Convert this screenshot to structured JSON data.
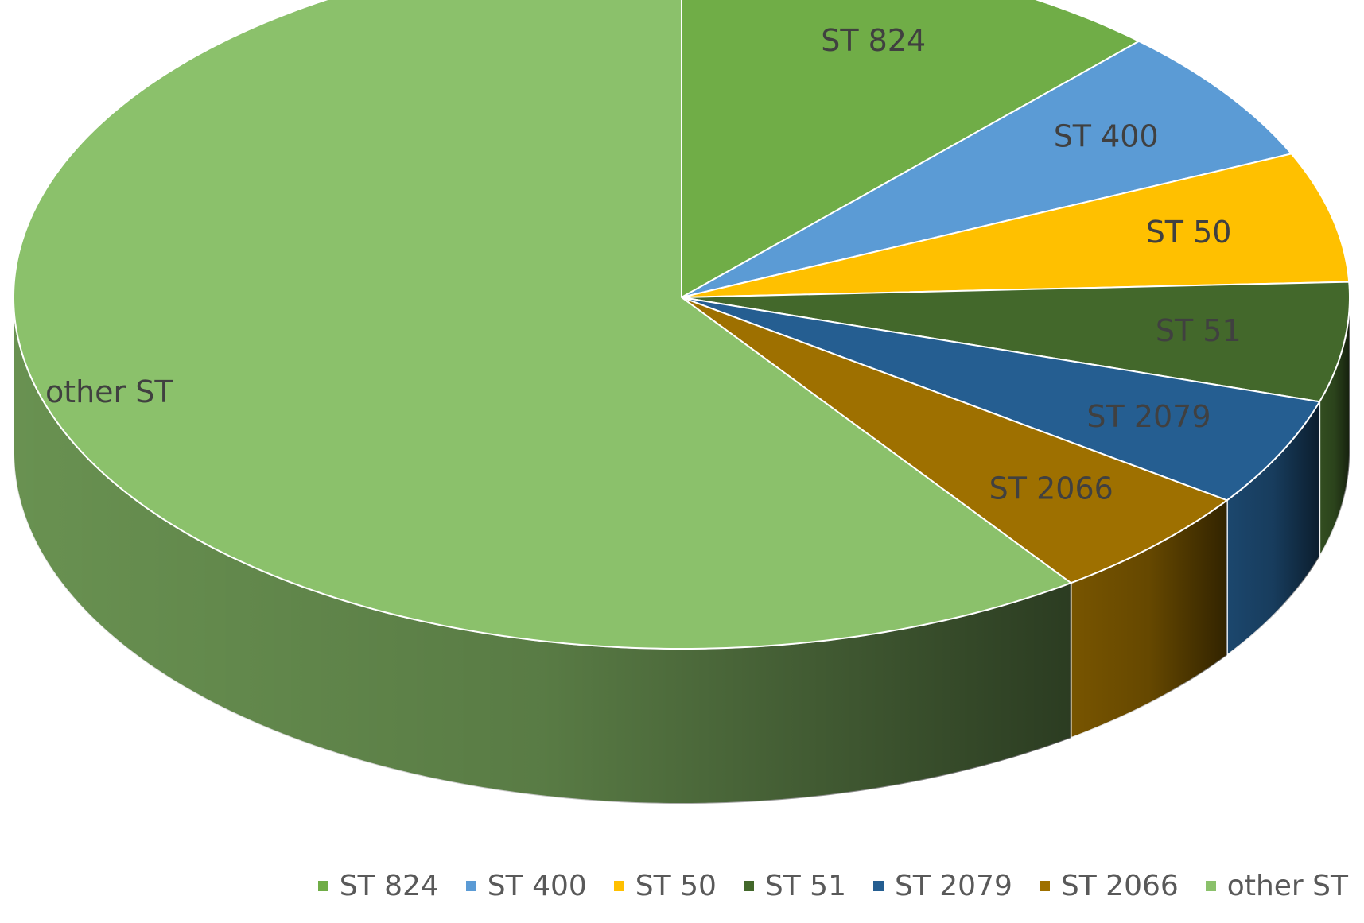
{
  "chart_data": {
    "type": "pie",
    "style": "3d",
    "title": "",
    "legend_position": "bottom",
    "slices": [
      {
        "label": "ST 824",
        "value": 12.0,
        "color": "#70AD47"
      },
      {
        "label": "ST 400",
        "value": 6.3,
        "color": "#5B9BD5"
      },
      {
        "label": "ST 50",
        "value": 6.0,
        "color": "#FFC000"
      },
      {
        "label": "ST 51",
        "value": 5.5,
        "color": "#43682B"
      },
      {
        "label": "ST 2079",
        "value": 5.0,
        "color": "#255E91"
      },
      {
        "label": "ST 2066",
        "value": 5.3,
        "color": "#9E7000"
      },
      {
        "label": "other ST",
        "value": 59.9,
        "color": "#8BC16B"
      }
    ]
  }
}
